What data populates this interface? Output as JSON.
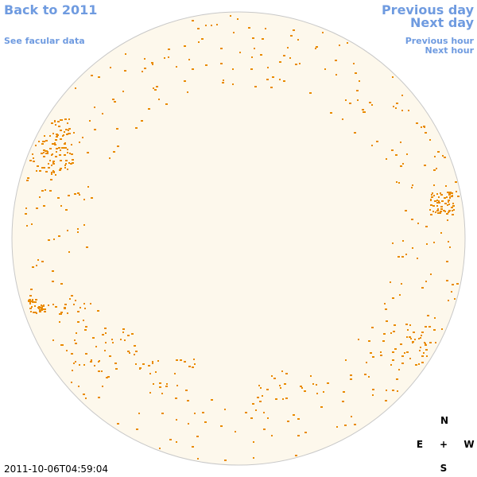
{
  "header": {
    "back_link": "Back to 2011",
    "facular_link": "See facular data"
  },
  "navigation": {
    "previous_day": "Previous day",
    "next_day": "Next day",
    "previous_hour": "Previous hour",
    "next_hour": "Next hour"
  },
  "compass": {
    "north": "N",
    "east": "E",
    "center": "+",
    "west": "W",
    "south": "S"
  },
  "timestamp": "2011-10-06T04:59:04"
}
